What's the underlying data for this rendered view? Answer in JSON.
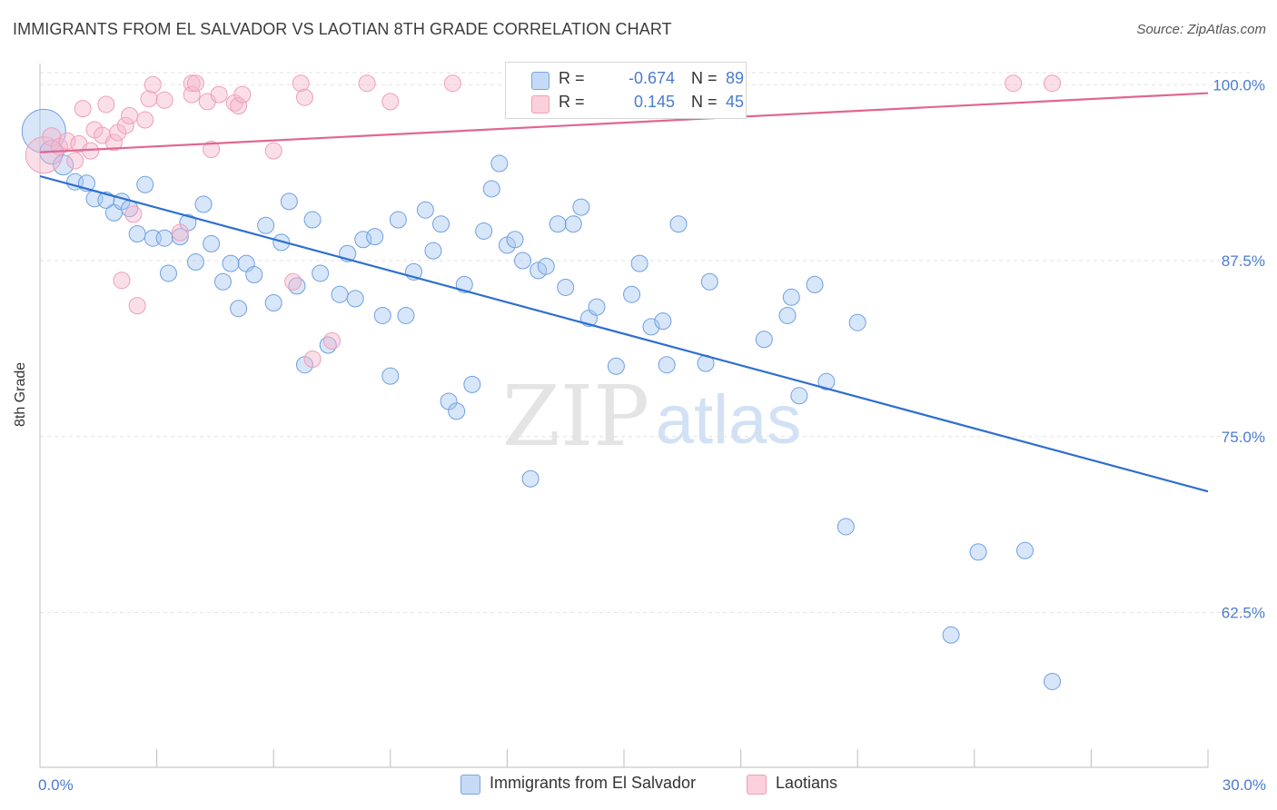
{
  "header": {
    "title": "IMMIGRANTS FROM EL SALVADOR VS LAOTIAN 8TH GRADE CORRELATION CHART",
    "source": "Source: ZipAtlas.com"
  },
  "watermark": {
    "zip": "ZIP",
    "atlas": "atlas"
  },
  "legend": {
    "rows": [
      {
        "r_label": "R =",
        "r_value": "-0.674",
        "n_label": "N =",
        "n_value": "89",
        "color": "#a9c8f2"
      },
      {
        "r_label": "R =",
        "r_value": "0.145",
        "n_label": "N =",
        "n_value": "45",
        "color": "#f6b8cb"
      }
    ]
  },
  "bottom_legend": [
    {
      "label": "Immigrants from El Salvador",
      "color": "#a9c8f2"
    },
    {
      "label": "Laotians",
      "color": "#f6b8cb"
    }
  ],
  "chart_data": {
    "type": "scatter",
    "title": "IMMIGRANTS FROM EL SALVADOR VS LAOTIAN 8TH GRADE CORRELATION CHART",
    "xlabel": "",
    "ylabel": "8th Grade",
    "xlim": [
      0,
      30
    ],
    "ylim": [
      51.5,
      101.5
    ],
    "x_ticks": [
      0,
      3,
      6,
      9,
      12,
      15,
      18,
      21,
      24,
      27,
      30
    ],
    "x_tick_labels": {
      "0": "0.0%",
      "30": "30.0%"
    },
    "y_ticks": [
      62.5,
      75.0,
      87.5,
      100.0
    ],
    "y_tick_labels": [
      "62.5%",
      "75.0%",
      "87.5%",
      "100.0%"
    ],
    "grid": true,
    "legend_position": "top-center",
    "series": [
      {
        "name": "Immigrants from El Salvador",
        "color": "#6fa0e2",
        "fill": "#a9c8f2",
        "trend": {
          "x": [
            0,
            30
          ],
          "y": [
            93.5,
            71.1
          ]
        },
        "points": [
          [
            0.1,
            96.7,
            24
          ],
          [
            0.3,
            95.2,
            13
          ],
          [
            0.6,
            94.3,
            11
          ],
          [
            0.9,
            93.1,
            9
          ],
          [
            1.2,
            93.0,
            9
          ],
          [
            1.4,
            91.9,
            9
          ],
          [
            1.7,
            91.8,
            9
          ],
          [
            1.9,
            90.9,
            9
          ],
          [
            2.1,
            91.7,
            9
          ],
          [
            2.3,
            91.2,
            9
          ],
          [
            2.5,
            89.4,
            9
          ],
          [
            2.7,
            92.9,
            9
          ],
          [
            2.9,
            89.1,
            9
          ],
          [
            3.2,
            89.1,
            9
          ],
          [
            3.3,
            86.6,
            9
          ],
          [
            3.6,
            89.2,
            9
          ],
          [
            3.8,
            90.2,
            9
          ],
          [
            4.0,
            87.4,
            9
          ],
          [
            4.2,
            91.5,
            9
          ],
          [
            4.4,
            88.7,
            9
          ],
          [
            4.7,
            86.0,
            9
          ],
          [
            4.9,
            87.3,
            9
          ],
          [
            5.1,
            84.1,
            9
          ],
          [
            5.3,
            87.3,
            9
          ],
          [
            5.5,
            86.5,
            9
          ],
          [
            5.8,
            90.0,
            9
          ],
          [
            6.0,
            84.5,
            9
          ],
          [
            6.2,
            88.8,
            9
          ],
          [
            6.4,
            91.7,
            9
          ],
          [
            6.6,
            85.7,
            9
          ],
          [
            6.8,
            80.1,
            9
          ],
          [
            7.0,
            90.4,
            9
          ],
          [
            7.2,
            86.6,
            9
          ],
          [
            7.4,
            81.5,
            9
          ],
          [
            7.7,
            85.1,
            9
          ],
          [
            7.9,
            88.0,
            9
          ],
          [
            8.1,
            84.8,
            9
          ],
          [
            8.3,
            89.0,
            9
          ],
          [
            8.6,
            89.2,
            9
          ],
          [
            8.8,
            83.6,
            9
          ],
          [
            9.0,
            79.3,
            9
          ],
          [
            9.2,
            90.4,
            9
          ],
          [
            9.4,
            83.6,
            9
          ],
          [
            9.6,
            86.7,
            9
          ],
          [
            9.9,
            91.1,
            9
          ],
          [
            10.1,
            88.2,
            9
          ],
          [
            10.3,
            90.1,
            9
          ],
          [
            10.5,
            77.5,
            9
          ],
          [
            10.7,
            76.8,
            9
          ],
          [
            10.9,
            85.8,
            9
          ],
          [
            11.1,
            78.7,
            9
          ],
          [
            11.4,
            89.6,
            9
          ],
          [
            11.6,
            92.6,
            9
          ],
          [
            11.8,
            94.4,
            9
          ],
          [
            12.0,
            88.6,
            9
          ],
          [
            12.2,
            89.0,
            9
          ],
          [
            12.4,
            87.5,
            9
          ],
          [
            12.6,
            72.0,
            9
          ],
          [
            12.8,
            86.8,
            9
          ],
          [
            13.0,
            87.1,
            9
          ],
          [
            13.3,
            90.1,
            9
          ],
          [
            13.5,
            85.6,
            9
          ],
          [
            13.7,
            90.1,
            9
          ],
          [
            13.9,
            91.3,
            9
          ],
          [
            14.1,
            83.4,
            9
          ],
          [
            14.3,
            84.2,
            9
          ],
          [
            14.8,
            80.0,
            9
          ],
          [
            15.2,
            85.1,
            9
          ],
          [
            15.4,
            87.3,
            9
          ],
          [
            15.7,
            82.8,
            9
          ],
          [
            16.0,
            83.2,
            9
          ],
          [
            16.1,
            80.1,
            9
          ],
          [
            16.4,
            90.1,
            9
          ],
          [
            17.1,
            80.2,
            9
          ],
          [
            17.2,
            86.0,
            9
          ],
          [
            18.6,
            81.9,
            9
          ],
          [
            19.2,
            83.6,
            9
          ],
          [
            19.3,
            84.9,
            9
          ],
          [
            19.5,
            77.9,
            9
          ],
          [
            19.9,
            85.8,
            9
          ],
          [
            20.2,
            78.9,
            9
          ],
          [
            20.7,
            68.6,
            9
          ],
          [
            21.0,
            83.1,
            9
          ],
          [
            23.4,
            60.9,
            9
          ],
          [
            24.1,
            66.8,
            9
          ],
          [
            25.3,
            66.9,
            9
          ],
          [
            26.0,
            57.6,
            9
          ]
        ]
      },
      {
        "name": "Laotians",
        "color": "#ee9fb8",
        "fill": "#f6b8cb",
        "trend": {
          "x": [
            0,
            30
          ],
          "y": [
            95.2,
            99.4
          ]
        },
        "points": [
          [
            0.1,
            95.0,
            20
          ],
          [
            0.3,
            96.3,
            10
          ],
          [
            0.5,
            95.6,
            9
          ],
          [
            0.7,
            96.0,
            9
          ],
          [
            0.9,
            94.6,
            9
          ],
          [
            1.0,
            95.8,
            9
          ],
          [
            1.1,
            98.3,
            9
          ],
          [
            1.3,
            95.3,
            9
          ],
          [
            1.4,
            96.8,
            9
          ],
          [
            1.6,
            96.4,
            9
          ],
          [
            1.7,
            98.6,
            9
          ],
          [
            1.9,
            95.9,
            9
          ],
          [
            2.0,
            96.6,
            9
          ],
          [
            2.1,
            86.1,
            9
          ],
          [
            2.2,
            97.1,
            9
          ],
          [
            2.3,
            97.8,
            9
          ],
          [
            2.4,
            90.8,
            9
          ],
          [
            2.5,
            84.3,
            9
          ],
          [
            2.7,
            97.5,
            9
          ],
          [
            2.8,
            99.0,
            9
          ],
          [
            2.9,
            100.0,
            9
          ],
          [
            3.2,
            98.9,
            9
          ],
          [
            3.6,
            89.5,
            9
          ],
          [
            3.9,
            100.1,
            9
          ],
          [
            3.9,
            99.3,
            9
          ],
          [
            4.0,
            100.1,
            9
          ],
          [
            4.3,
            98.8,
            9
          ],
          [
            4.4,
            95.4,
            9
          ],
          [
            4.6,
            99.3,
            9
          ],
          [
            5.0,
            98.7,
            9
          ],
          [
            5.1,
            98.5,
            9
          ],
          [
            5.2,
            99.3,
            9
          ],
          [
            6.0,
            95.3,
            9
          ],
          [
            6.5,
            86.0,
            9
          ],
          [
            6.7,
            100.1,
            9
          ],
          [
            6.8,
            99.1,
            9
          ],
          [
            7.0,
            80.5,
            9
          ],
          [
            7.5,
            81.8,
            9
          ],
          [
            8.4,
            100.1,
            9
          ],
          [
            9.0,
            98.8,
            9
          ],
          [
            10.6,
            100.1,
            9
          ],
          [
            25.0,
            100.1,
            9
          ],
          [
            26.0,
            100.1,
            9
          ]
        ]
      }
    ]
  }
}
